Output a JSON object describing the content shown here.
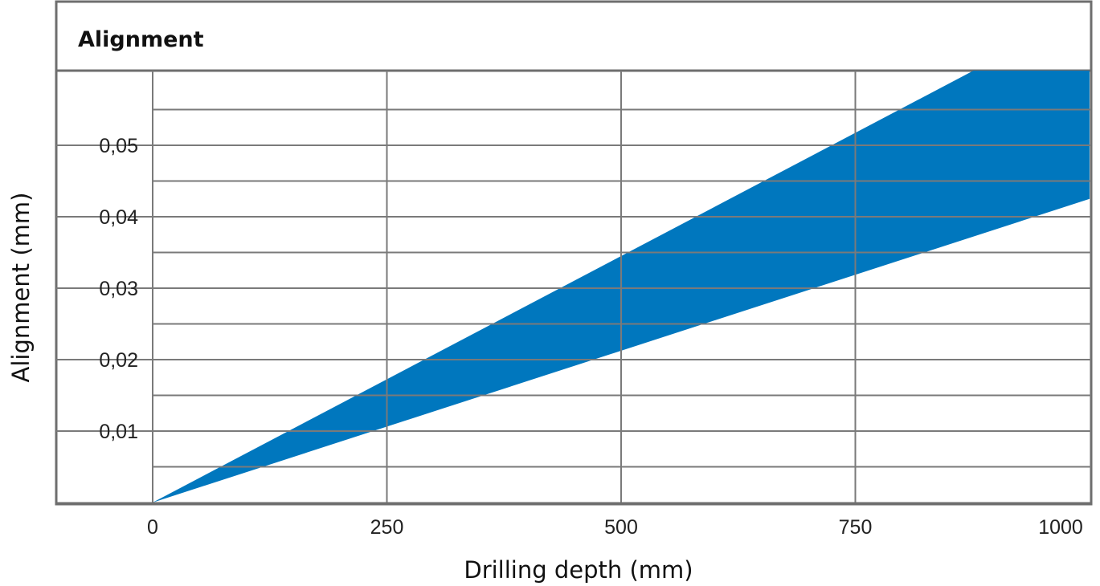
{
  "chart_data": {
    "type": "area",
    "title": "Alignment",
    "xlabel": "Drilling depth (mm)",
    "ylabel": "Alignment (mm)",
    "xlim": [
      0,
      1000
    ],
    "ylim": [
      0,
      0.06
    ],
    "x_ticks": [
      0,
      250,
      500,
      750,
      1000
    ],
    "x_tick_labels": [
      "0",
      "250",
      "500",
      "750",
      "1000"
    ],
    "y_ticks": [
      0.01,
      0.02,
      0.03,
      0.04,
      0.05
    ],
    "y_tick_labels": [
      "0,01",
      "0,02",
      "0,03",
      "0,04",
      "0,05"
    ],
    "y_minor_gridlines": [
      0.005,
      0.015,
      0.025,
      0.035,
      0.045,
      0.055
    ],
    "grid": true,
    "band": {
      "x": [
        0,
        1000
      ],
      "upper": [
        0,
        0.069
      ],
      "lower": [
        0,
        0.0425
      ],
      "color": "#0077be"
    }
  }
}
